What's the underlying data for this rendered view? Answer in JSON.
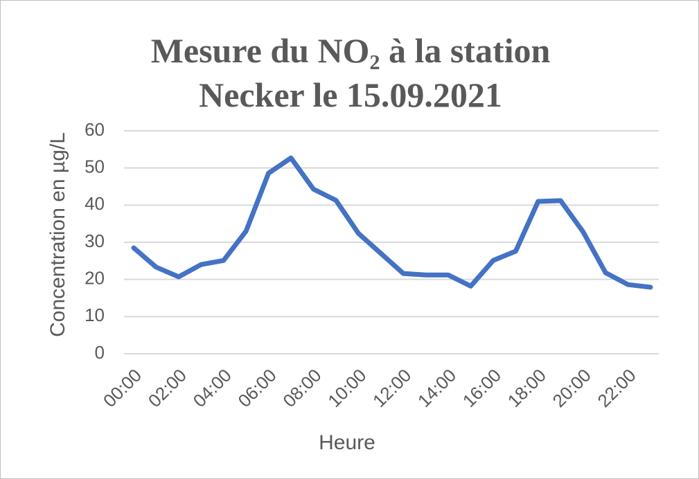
{
  "chart_data": {
    "type": "line",
    "title": "Mesure du NO₂ à la station Necker le 15.09.2021",
    "x_label": "Heure",
    "y_label": "Concentration en µg/L",
    "categories": [
      "00:00",
      null,
      "02:00",
      null,
      "04:00",
      null,
      "06:00",
      null,
      "08:00",
      null,
      "10:00",
      null,
      "12:00",
      null,
      "14:00",
      null,
      "16:00",
      null,
      "18:00",
      null,
      "20:00",
      null,
      "22:00",
      null
    ],
    "values": [
      28.5,
      23.3,
      20.7,
      24.0,
      25.1,
      33.0,
      48.6,
      52.7,
      44.3,
      41.3,
      32.4,
      27.0,
      21.6,
      21.2,
      21.2,
      18.2,
      25.1,
      27.6,
      41.0,
      41.2,
      32.8,
      21.8,
      18.6,
      17.9
    ],
    "color": "#4472c4",
    "ylim": [
      0,
      60
    ],
    "yticks": [
      0,
      10,
      20,
      30,
      40,
      50,
      60
    ],
    "grid": true
  }
}
